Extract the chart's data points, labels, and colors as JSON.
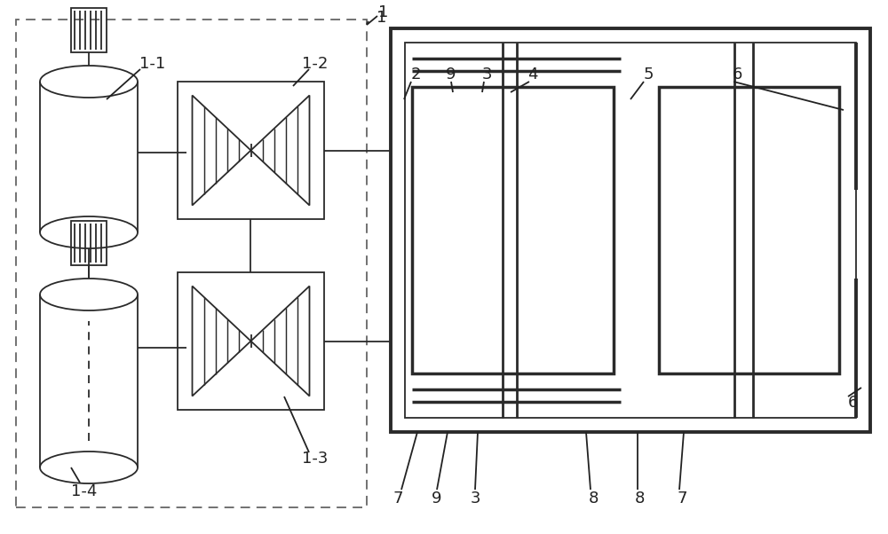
{
  "fig_width": 10.0,
  "fig_height": 6.02,
  "dpi": 100,
  "bg_color": "#ffffff",
  "lc": "#2a2a2a",
  "lw_thin": 1.3,
  "lw_mid": 2.0,
  "lw_thick": 2.8,
  "label_fs": 13,
  "label_color": "#222222",
  "dash_color": "#666666"
}
